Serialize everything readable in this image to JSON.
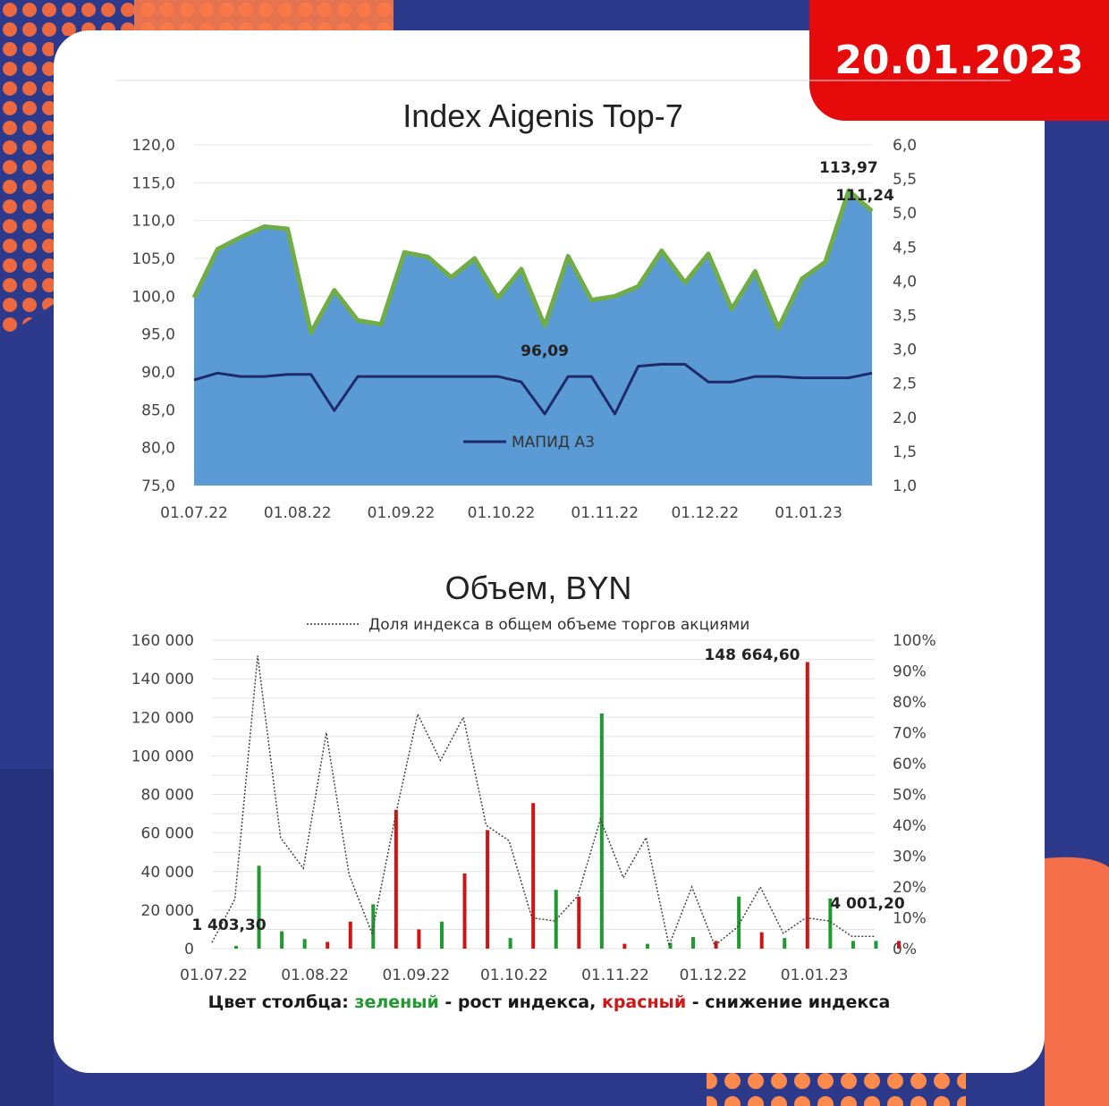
{
  "date": "20.01.2023",
  "caption": {
    "prefix": "Цвет столбца: ",
    "green_word": "зеленый",
    "middle": " - рост индекса, ",
    "red_word": "красный",
    "suffix": " - снижение индекса"
  },
  "colors": {
    "index_fill": "#5b9bd5",
    "index_line": "#70ad47",
    "mapid_line": "#1f2a6b",
    "bar_green": "#1f9a2e",
    "bar_red": "#d11414",
    "badge": "#e60a0a"
  },
  "chart_data": [
    {
      "type": "area",
      "title": "Index Aigenis Top-7",
      "ylim": [
        75,
        120
      ],
      "y2lim": [
        1,
        6
      ],
      "yticks": [
        "75,0",
        "80,0",
        "85,0",
        "90,0",
        "95,0",
        "100,0",
        "105,0",
        "110,0",
        "115,0",
        "120,0"
      ],
      "y2ticks": [
        "1,0",
        "1,5",
        "2,0",
        "2,5",
        "3,0",
        "3,5",
        "4,0",
        "4,5",
        "5,0",
        "5,5",
        "6,0"
      ],
      "xticks": [
        "01.07.22",
        "01.08.22",
        "01.09.22",
        "01.10.22",
        "01.11.22",
        "01.12.22",
        "01.01.23"
      ],
      "x_range": [
        "01.07.22",
        "20.01.23"
      ],
      "grid": true,
      "series": [
        {
          "axis": "left",
          "dates": [
            "01.07.22",
            "08.07.22",
            "15.07.22",
            "22.07.22",
            "29.07.22",
            "05.08.22",
            "12.08.22",
            "19.08.22",
            "26.08.22",
            "02.09.22",
            "09.09.22",
            "16.09.22",
            "23.09.22",
            "30.09.22",
            "07.10.22",
            "14.10.22",
            "21.10.22",
            "28.10.22",
            "04.11.22",
            "11.11.22",
            "18.11.22",
            "25.11.22",
            "02.12.22",
            "09.12.22",
            "16.12.22",
            "23.12.22",
            "30.12.22",
            "06.01.23",
            "13.01.23",
            "20.01.23"
          ],
          "values": [
            99.8,
            106.2,
            107.8,
            109.2,
            108.9,
            95.2,
            100.8,
            96.8,
            96.3,
            105.8,
            105.2,
            102.5,
            105.0,
            99.8,
            103.6,
            96.09,
            105.3,
            99.5,
            100.0,
            101.3,
            106.0,
            101.8,
            105.6,
            98.3,
            103.3,
            95.8,
            102.3,
            104.5,
            113.97,
            111.24
          ]
        },
        {
          "name": "МАПИД А3",
          "axis": "right",
          "dates": [
            "01.07.22",
            "08.07.22",
            "15.07.22",
            "22.07.22",
            "29.07.22",
            "05.08.22",
            "12.08.22",
            "19.08.22",
            "26.08.22",
            "02.09.22",
            "09.09.22",
            "16.09.22",
            "23.09.22",
            "30.09.22",
            "07.10.22",
            "14.10.22",
            "21.10.22",
            "28.10.22",
            "04.11.22",
            "11.11.22",
            "18.11.22",
            "25.11.22",
            "02.12.22",
            "09.12.22",
            "16.12.22",
            "23.12.22",
            "30.12.22",
            "06.01.23",
            "13.01.23",
            "20.01.23"
          ],
          "values": [
            2.55,
            2.65,
            2.6,
            2.6,
            2.63,
            2.63,
            2.1,
            2.6,
            2.6,
            2.6,
            2.6,
            2.6,
            2.6,
            2.6,
            2.52,
            2.05,
            2.6,
            2.6,
            2.05,
            2.75,
            2.78,
            2.78,
            2.52,
            2.52,
            2.6,
            2.6,
            2.58,
            2.58,
            2.58,
            2.65
          ]
        }
      ],
      "data_labels": [
        {
          "text": "113,97",
          "date": "13.01.23",
          "value": 113.97
        },
        {
          "text": "111,24",
          "date": "20.01.23",
          "value": 111.24
        },
        {
          "text": "96,09",
          "date": "14.10.22",
          "value": 96.09
        }
      ]
    },
    {
      "type": "bar",
      "title": "Объем, BYN",
      "legend": "Доля индекса в общем объеме торгов акциями",
      "legend_position": "top",
      "ylim": [
        0,
        160000
      ],
      "y2lim": [
        0,
        100
      ],
      "yticks": [
        "0",
        "20 000",
        "40 000",
        "60 000",
        "80 000",
        "100 000",
        "120 000",
        "140 000",
        "160 000"
      ],
      "y2ticks": [
        "0%",
        "10%",
        "20%",
        "30%",
        "40%",
        "50%",
        "60%",
        "70%",
        "80%",
        "90%",
        "100%"
      ],
      "xticks": [
        "01.07.22",
        "01.08.22",
        "01.09.22",
        "01.10.22",
        "01.11.22",
        "01.12.22",
        "01.01.23"
      ],
      "x_range": [
        "01.07.22",
        "20.01.23"
      ],
      "grid": true,
      "bars": {
        "dates": [
          "01.07.22",
          "08.07.22",
          "15.07.22",
          "22.07.22",
          "29.07.22",
          "05.08.22",
          "12.08.22",
          "19.08.22",
          "26.08.22",
          "02.09.22",
          "09.09.22",
          "16.09.22",
          "23.09.22",
          "30.09.22",
          "07.10.22",
          "14.10.22",
          "21.10.22",
          "28.10.22",
          "04.11.22",
          "11.11.22",
          "18.11.22",
          "25.11.22",
          "02.12.22",
          "09.12.22",
          "16.12.22",
          "23.12.22",
          "30.12.22",
          "06.01.23",
          "13.01.23",
          "20.01.23"
        ],
        "values": [
          1403.3,
          43000,
          9000,
          5000,
          3500,
          14000,
          23000,
          72000,
          10000,
          14000,
          39000,
          61500,
          5500,
          75500,
          30500,
          27000,
          122000,
          2500,
          2500,
          3000,
          6000,
          4000,
          27000,
          8500,
          5500,
          148664.6,
          26000,
          4000,
          4000,
          4001.2
        ],
        "colors": [
          "g",
          "g",
          "g",
          "g",
          "r",
          "r",
          "g",
          "r",
          "r",
          "g",
          "r",
          "r",
          "g",
          "r",
          "g",
          "r",
          "g",
          "r",
          "g",
          "g",
          "g",
          "r",
          "g",
          "r",
          "g",
          "r",
          "g",
          "g",
          "g",
          "r"
        ]
      },
      "share_line": {
        "dates": [
          "01.07.22",
          "08.07.22",
          "15.07.22",
          "22.07.22",
          "29.07.22",
          "05.08.22",
          "12.08.22",
          "19.08.22",
          "26.08.22",
          "02.09.22",
          "09.09.22",
          "16.09.22",
          "23.09.22",
          "30.09.22",
          "07.10.22",
          "14.10.22",
          "21.10.22",
          "28.10.22",
          "04.11.22",
          "11.11.22",
          "18.11.22",
          "25.11.22",
          "02.12.22",
          "09.12.22",
          "16.12.22",
          "23.12.22",
          "30.12.22",
          "06.01.23",
          "13.01.23",
          "20.01.23"
        ],
        "values": [
          2,
          16,
          95,
          36,
          26,
          70,
          24,
          5,
          42,
          76,
          61,
          75,
          40,
          35,
          10,
          9,
          17,
          42,
          23,
          36,
          1,
          20,
          1,
          7,
          20,
          5,
          10,
          9,
          4,
          4
        ]
      },
      "data_labels": [
        {
          "text": "1 403,30",
          "date": "01.07.22",
          "value": 1403.3
        },
        {
          "text": "148 664,60",
          "date": "23.12.22",
          "value": 148664.6
        },
        {
          "text": "4 001,20",
          "date": "20.01.23",
          "value": 4001.2
        }
      ]
    }
  ]
}
